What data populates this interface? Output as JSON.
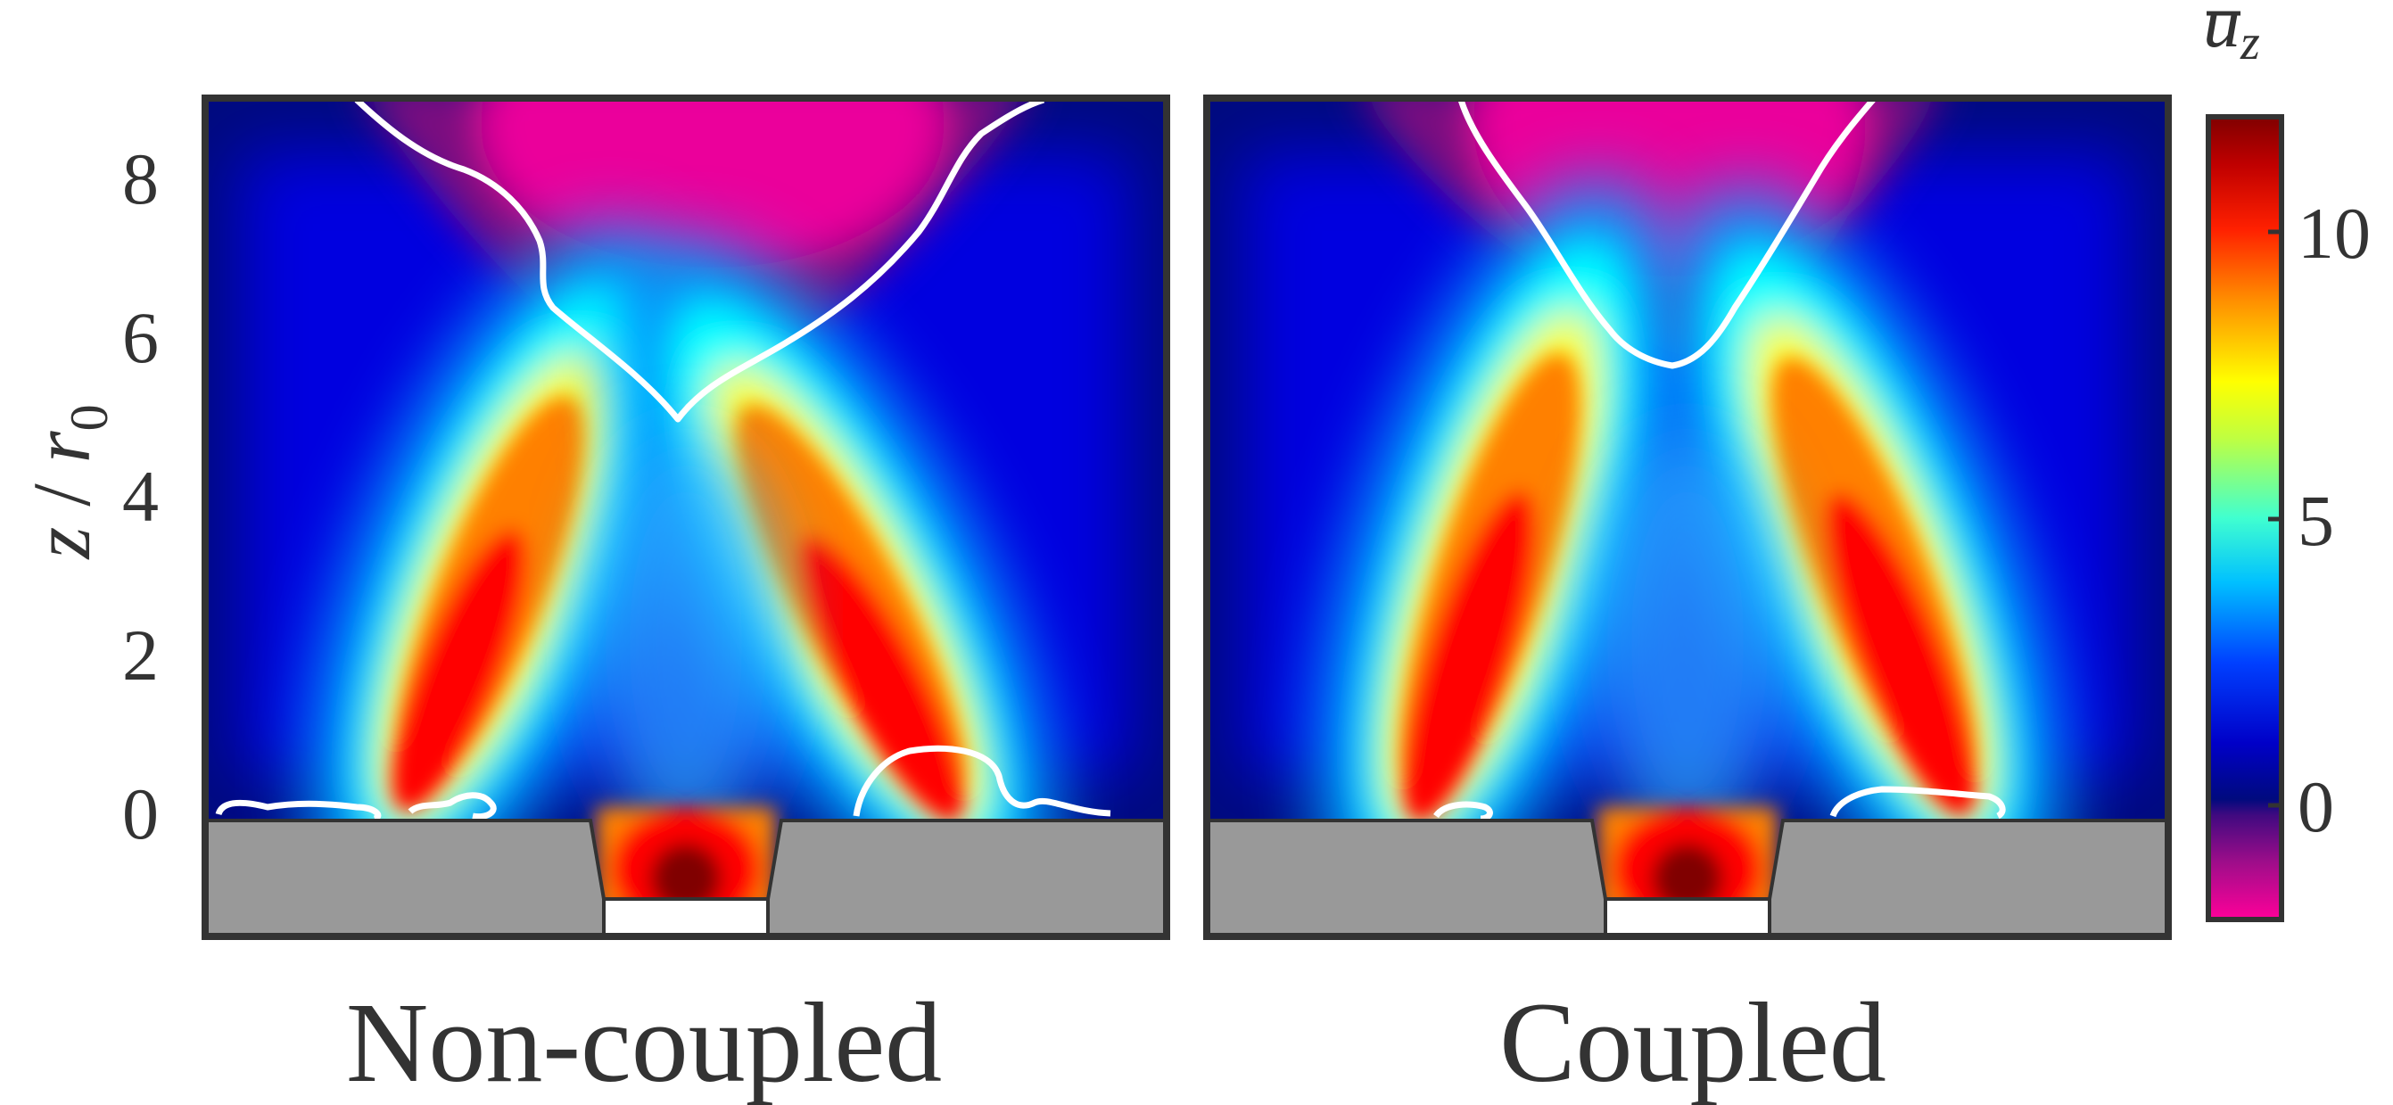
{
  "chart_data": {
    "type": "heatmap",
    "colormap": "jet with magenta for negative values",
    "ylabel": "z / r0",
    "ylabel_parts": {
      "var": "z",
      "sep": " / ",
      "r": "r",
      "sub": "0"
    },
    "ylim": [
      -1.5,
      8.8
    ],
    "yticks": [
      "0",
      "2",
      "4",
      "6",
      "8"
    ],
    "ytick_values": [
      0,
      2,
      4,
      6,
      8
    ],
    "colorbar": {
      "label_base": "u",
      "label_subscript": "z",
      "label_overbar": true,
      "range": [
        -2,
        12
      ],
      "ticks": [
        "0",
        "5",
        "10"
      ],
      "tick_values": [
        0,
        5,
        10
      ],
      "colors": {
        "magenta": "#ff00a0",
        "purple": "#7a0a80",
        "navy": "#000a7e",
        "blue": "#0000ff",
        "cyan": "#00ffff",
        "yellow": "#ffff00",
        "orange": "#ff8000",
        "red": "#ff0000",
        "darkred": "#800000"
      }
    },
    "panels": [
      {
        "title": "Non-coupled",
        "recirculation_zone_min_z": 4.9,
        "peak_jet_value": 10
      },
      {
        "title": "Coupled",
        "recirculation_zone_min_z": 5.6,
        "peak_jet_value": 11
      }
    ],
    "colors": {
      "solid_wall": "#999999",
      "contour": "#ffffff",
      "frame": "#333333"
    }
  }
}
